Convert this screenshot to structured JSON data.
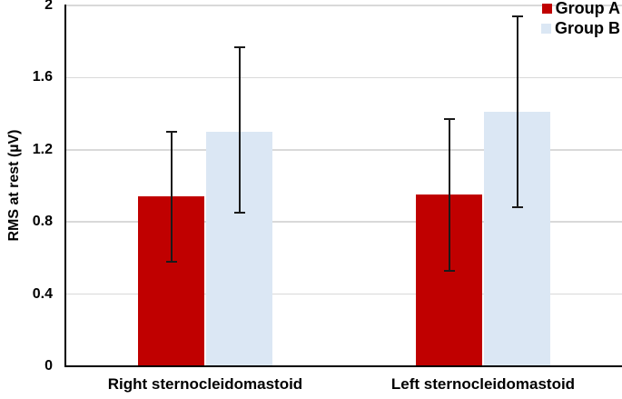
{
  "figure": {
    "background": "#ffffff"
  },
  "chart_data": {
    "type": "bar",
    "title": "",
    "ylabel": "RMS at rest (µV)",
    "xlabel": "",
    "ylim": [
      0,
      2
    ],
    "yticks": [
      0,
      0.4,
      0.8,
      1.2,
      1.6,
      2
    ],
    "ytick_labels": [
      "0",
      "0.4",
      "0.8",
      "1.2",
      "1.6",
      "2"
    ],
    "grid": "horizontal",
    "gridline_color": "#d9d9d9",
    "axis_color": "#000000",
    "error_bar_color": "#1a1a1a",
    "legend_position": "top-right",
    "categories": [
      "Right sternocleidomastoid",
      "Left sternocleidomastoid"
    ],
    "series": [
      {
        "name": "Group A",
        "color": "#c00000",
        "values": [
          0.94,
          0.95
        ],
        "error_low": [
          0.58,
          0.53
        ],
        "error_high": [
          1.3,
          1.37
        ]
      },
      {
        "name": "Group B",
        "color": "#dbe7f4",
        "values": [
          1.3,
          1.41
        ],
        "error_low": [
          0.85,
          0.88
        ],
        "error_high": [
          1.77,
          1.94
        ]
      }
    ]
  }
}
